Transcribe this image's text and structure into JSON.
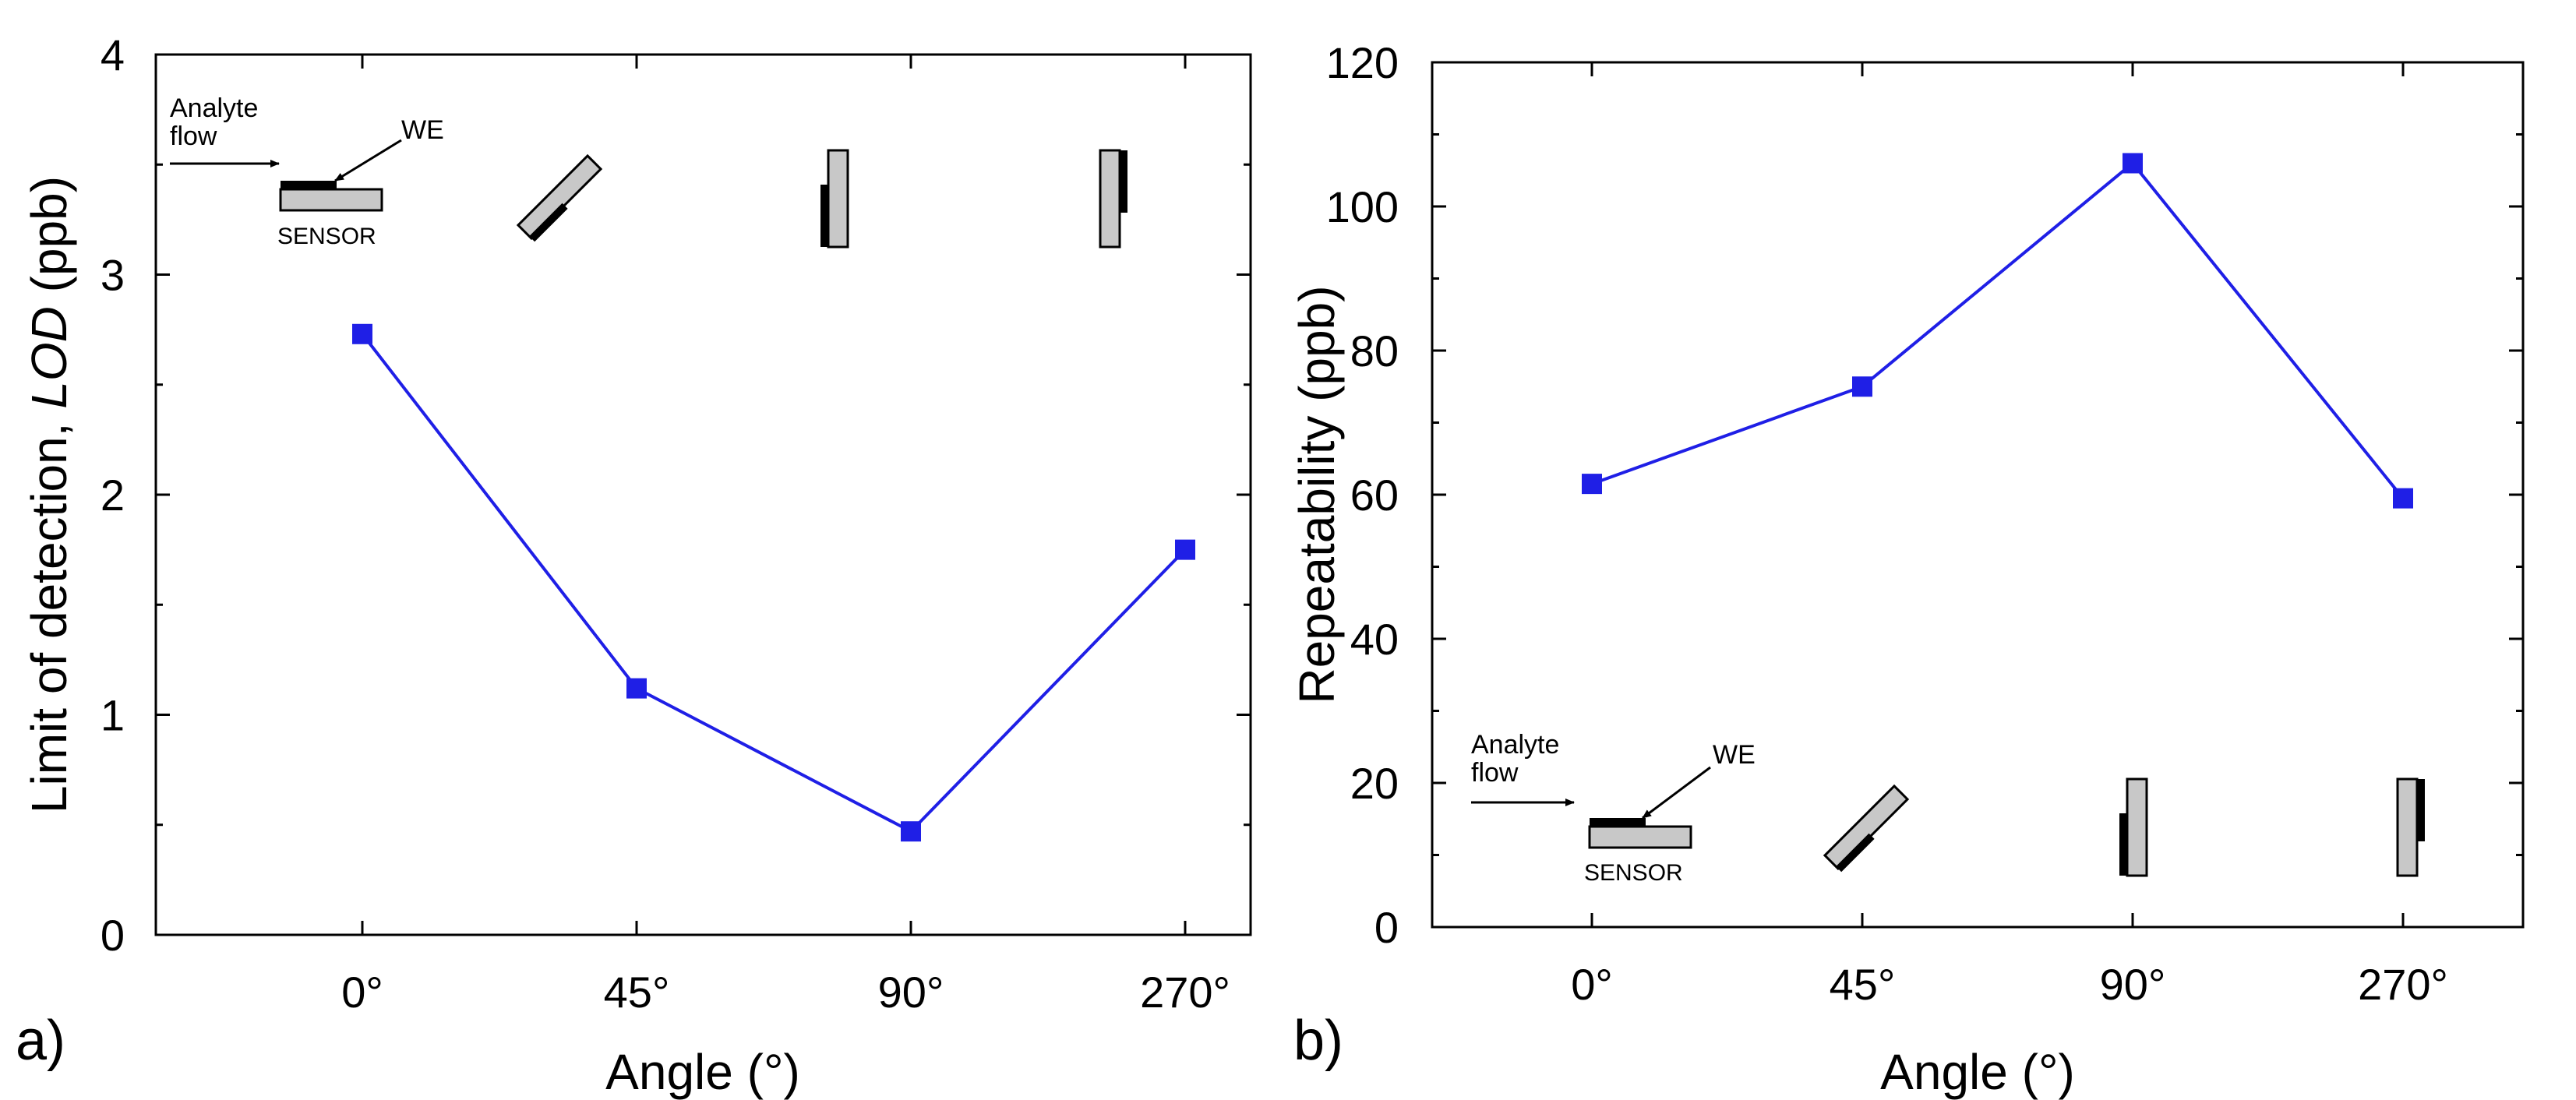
{
  "chart_data": [
    {
      "type": "line",
      "panel_label": "a)",
      "title": "",
      "xlabel": "Angle (°)",
      "ylabel_prefix": "Limit of detection, ",
      "ylabel_italic": "LOD",
      "ylabel_suffix": " (ppb)",
      "categories": [
        "0°",
        "45°",
        "90°",
        "270°"
      ],
      "series": [
        {
          "name": "LOD",
          "color": "#1f1fe6",
          "values": [
            2.73,
            1.12,
            0.47,
            1.75
          ]
        }
      ],
      "ylim": [
        0,
        4
      ],
      "yticks": [
        "0",
        "1",
        "2",
        "3",
        "4"
      ],
      "diagram_labels": {
        "flow": [
          "Analyte",
          "flow"
        ],
        "electrode": "WE",
        "sensor": "SENSOR"
      },
      "diagram_placement": "top"
    },
    {
      "type": "line",
      "panel_label": "b)",
      "title": "",
      "xlabel": "Angle (°)",
      "ylabel": "Repeatability (ppb)",
      "categories": [
        "0°",
        "45°",
        "90°",
        "270°"
      ],
      "series": [
        {
          "name": "Repeatability",
          "color": "#1f1fe6",
          "values": [
            61.5,
            75,
            106,
            59.5
          ]
        }
      ],
      "ylim": [
        0,
        120
      ],
      "yticks": [
        "0",
        "20",
        "40",
        "60",
        "80",
        "100",
        "120"
      ],
      "diagram_labels": {
        "flow": [
          "Analyte",
          "flow"
        ],
        "electrode": "WE",
        "sensor": "SENSOR"
      },
      "diagram_placement": "bottom"
    }
  ]
}
